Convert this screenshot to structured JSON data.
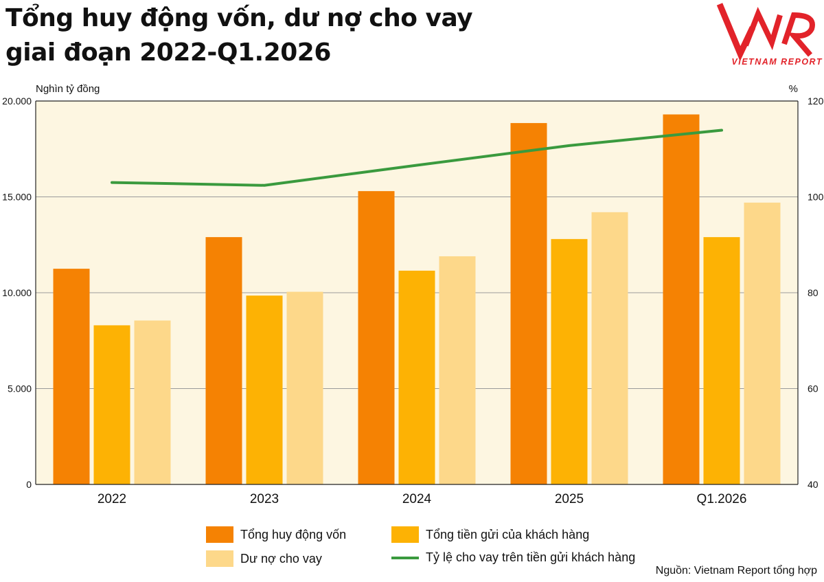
{
  "title": {
    "line1": "Tổng huy động vốn, dư nợ cho vay",
    "line2": "giai đoạn 2022-Q1.2026"
  },
  "logo": {
    "mark": "VNR",
    "text": "VIETNAM REPORT",
    "color": "#e2232a"
  },
  "source": "Nguồn: Vietnam Report tổng hợp",
  "legend": {
    "items": [
      {
        "label": "Tổng huy động vốn",
        "color": "#f58203"
      },
      {
        "label": "Tổng tiền gửi của khách hàng",
        "color": "#fdb204"
      },
      {
        "label": "Dư nợ cho vay",
        "color": "#fdd88a"
      },
      {
        "label": "Tỷ lệ cho vay trên tiền gửi khách hàng",
        "color": "#3a9a3e"
      }
    ]
  },
  "chart_data": {
    "type": "bar",
    "categories": [
      "2022",
      "2023",
      "2024",
      "2025",
      "Q1.2026"
    ],
    "series": [
      {
        "name": "Tổng huy động vốn",
        "type": "bar",
        "axis": "left",
        "color": "#f58203",
        "values": [
          11250,
          12900,
          15300,
          18850,
          19300
        ]
      },
      {
        "name": "Tổng tiền gửi của khách hàng",
        "type": "bar",
        "axis": "left",
        "color": "#fdb204",
        "values": [
          8300,
          9850,
          11150,
          12800,
          12900
        ]
      },
      {
        "name": "Dư nợ cho vay",
        "type": "bar",
        "axis": "left",
        "color": "#fdd88a",
        "values": [
          8550,
          10050,
          11900,
          14200,
          14700
        ]
      },
      {
        "name": "Tỷ lệ cho vay trên tiền gửi khách hàng",
        "type": "line",
        "axis": "right",
        "color": "#3a9a3e",
        "values": [
          103.0,
          102.4,
          106.6,
          110.7,
          113.9
        ]
      }
    ],
    "ylabel": "Nghìn tỷ đồng",
    "ylabel_right": "%",
    "ylim": [
      0,
      20000
    ],
    "ylim_right": [
      40,
      120
    ],
    "yticks": [
      "0",
      "5.000",
      "10.000",
      "15.000",
      "20.000"
    ],
    "yticks_right": [
      "40",
      "60",
      "80",
      "100",
      "120"
    ],
    "grid": true,
    "legend_position": "bottom",
    "plot_background": "#fdf6e1"
  }
}
